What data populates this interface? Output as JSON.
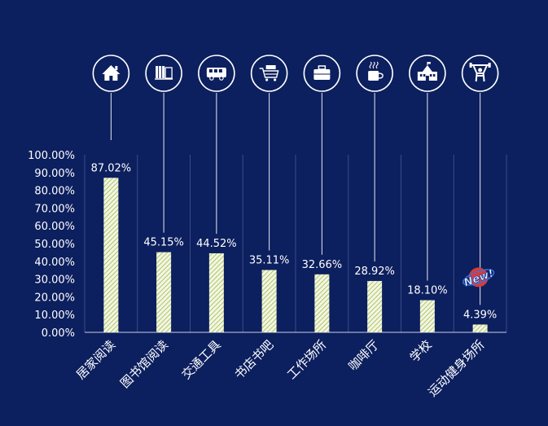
{
  "chart_data": {
    "type": "bar",
    "categories": [
      "居家阅读",
      "图书馆阅读",
      "交通工具",
      "书店书吧",
      "工作场所",
      "咖啡厅",
      "学校",
      "运动健身场所"
    ],
    "values": [
      87.02,
      45.15,
      44.52,
      35.11,
      32.66,
      28.92,
      18.1,
      4.39
    ],
    "value_labels": [
      "87.02%",
      "45.15%",
      "44.52%",
      "35.11%",
      "32.66%",
      "28.92%",
      "18.10%",
      "4.39%"
    ],
    "ylim": [
      0,
      100
    ],
    "yticks": [
      "0.00%",
      "10.00%",
      "20.00%",
      "30.00%",
      "40.00%",
      "50.00%",
      "60.00%",
      "70.00%",
      "80.00%",
      "90.00%",
      "100.00%"
    ],
    "icons": [
      "house-icon",
      "bookshelf-icon",
      "bus-icon",
      "bookstore-cart-icon",
      "briefcase-icon",
      "coffee-cup-icon",
      "school-icon",
      "weightlifter-icon"
    ],
    "new_badge": {
      "category_index": 7,
      "text": "New!"
    },
    "grid": "vertical-only",
    "colors": {
      "background": "#0c1f5e",
      "bar_fill": "#f3f5e6",
      "bar_hatch": "#9cbc3c",
      "text": "#ffffff",
      "gridline": "#3a4c88",
      "badge": "#d93a3a"
    }
  }
}
